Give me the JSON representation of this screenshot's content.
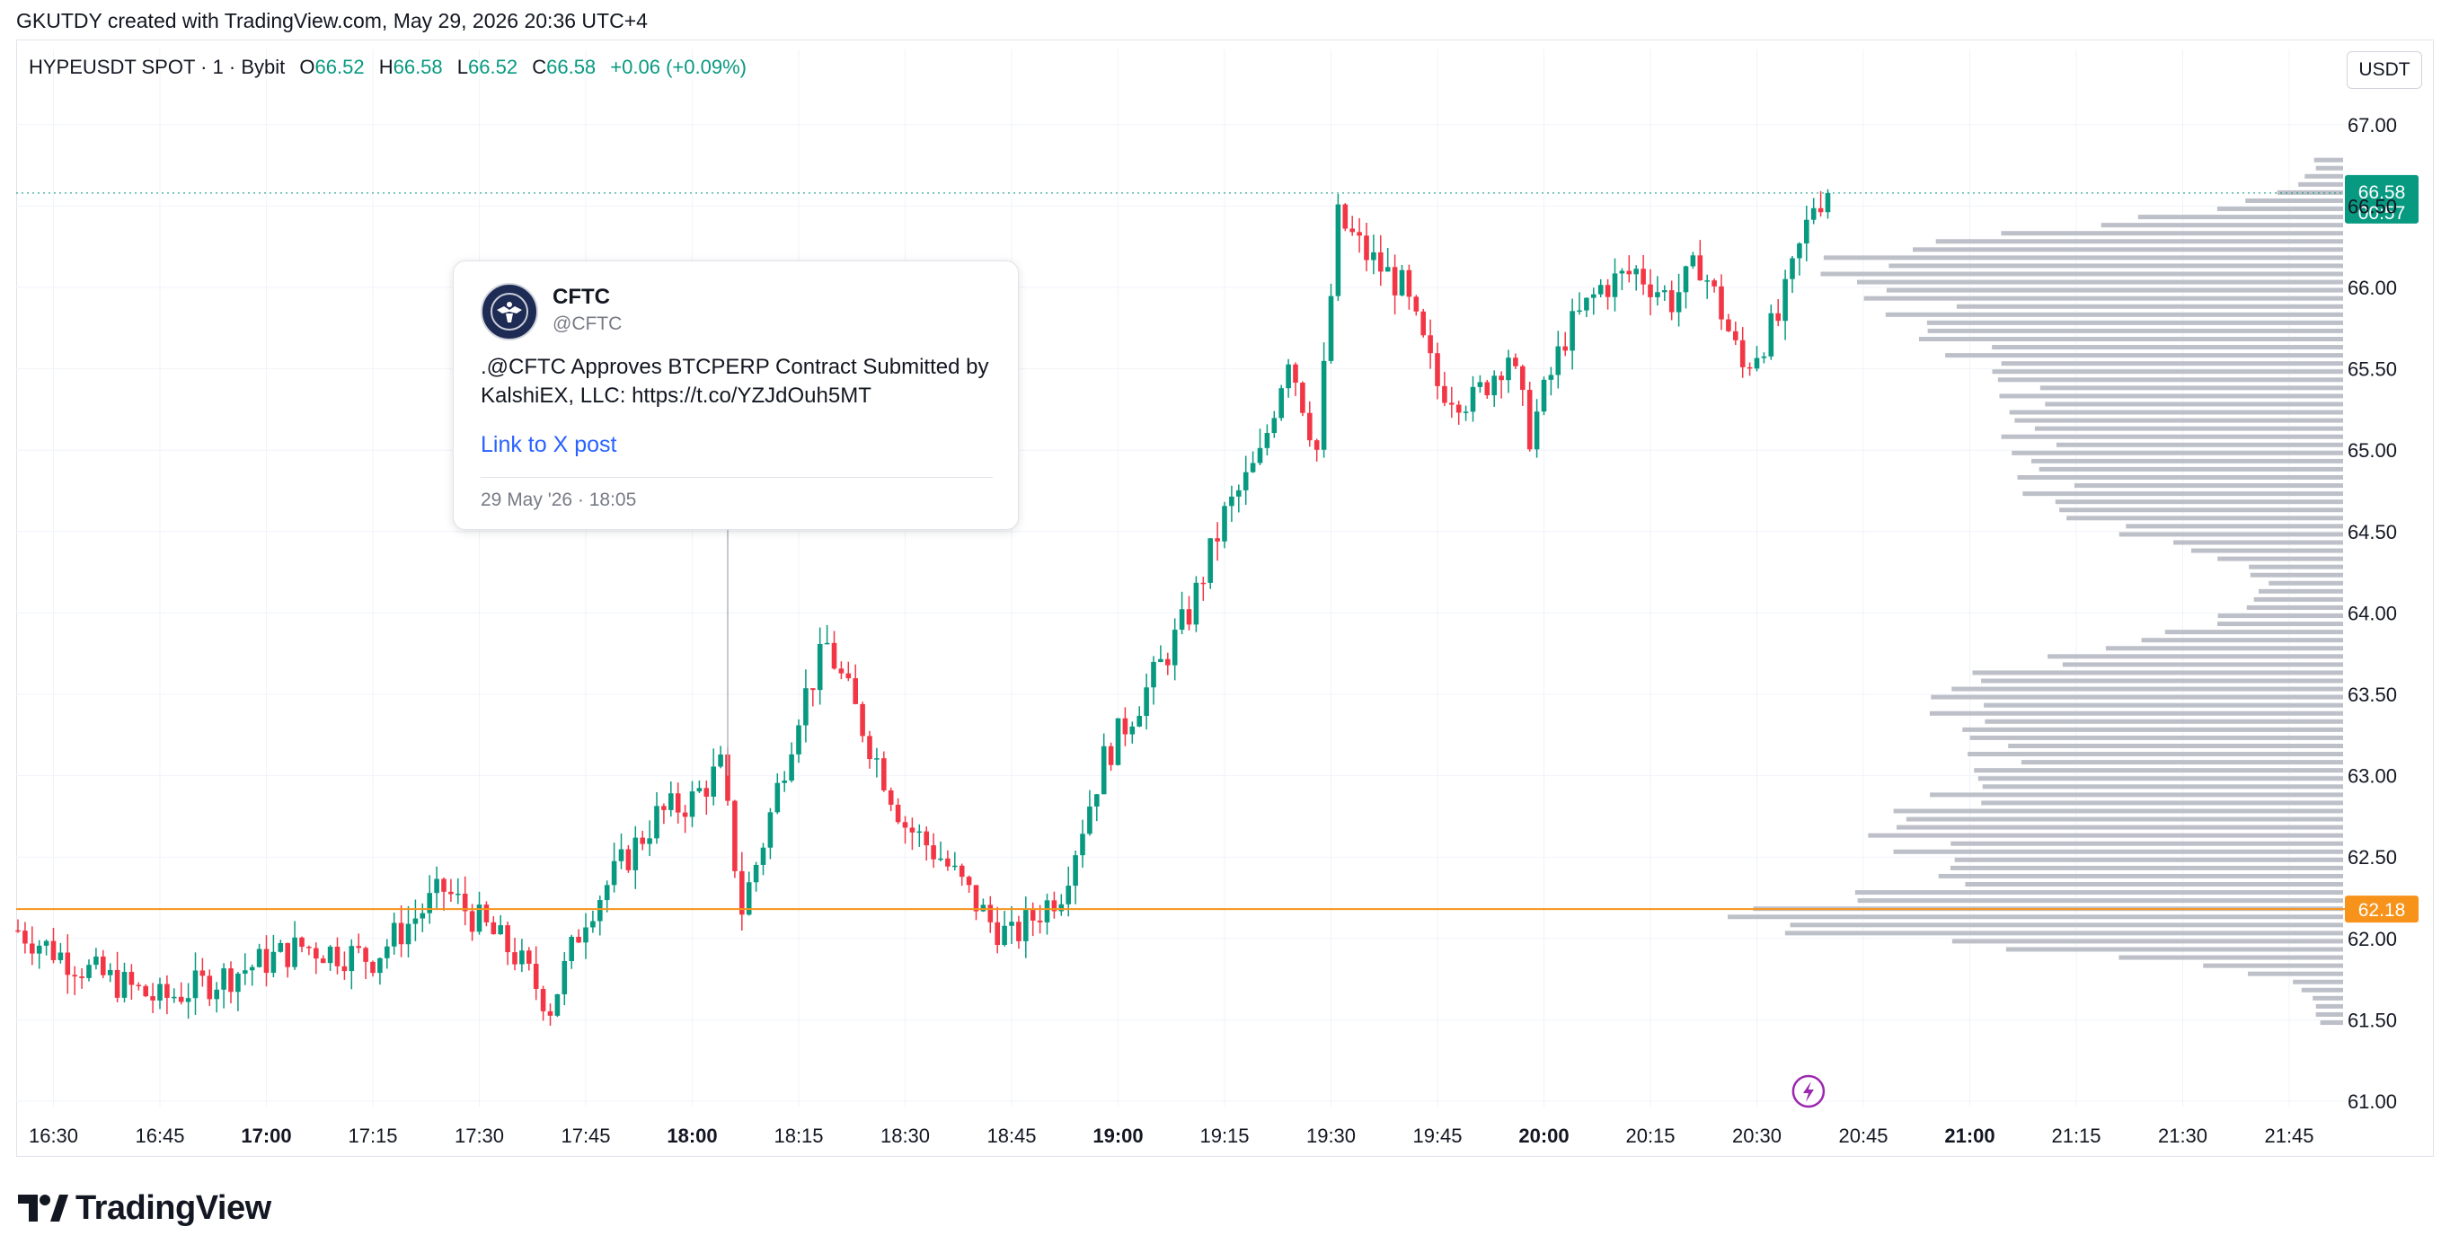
{
  "header": {
    "text": "GKUTDY created with TradingView.com, May 29, 2026 20:36 UTC+4"
  },
  "legend": {
    "symbol": "HYPEUSDT SPOT · 1 · Bybit",
    "o_label": "O",
    "o_value": "66.52",
    "h_label": "H",
    "h_value": "66.58",
    "l_label": "L",
    "l_value": "66.52",
    "c_label": "C",
    "c_value": "66.58",
    "change": "+0.06 (+0.09%)"
  },
  "currency": "USDT",
  "colors": {
    "up": "#089981",
    "down": "#f23645",
    "orange": "#f7931a",
    "volume_profile": "#b2b5be",
    "link": "#2962ff"
  },
  "tweet": {
    "author": "CFTC",
    "handle": "@CFTC",
    "text": ".@CFTC Approves BTCPERP Contract Submitted by KalshiEX, LLC: https://t.co/YZJdOuh5MT",
    "link_label": "Link to X post",
    "date": "29 May '26 · 18:05",
    "avatar_icon": "cftc-seal-icon"
  },
  "event_marker_icon": "lightning-icon",
  "footer": {
    "logo_text": "TradingView",
    "logo_icon": "tradingview-logo-icon"
  },
  "chart_data": {
    "type": "candlestick",
    "symbol": "HYPEUSDT",
    "timeframe": "1 minute",
    "x_tick_labels": [
      "16:30",
      "16:45",
      "17:00",
      "17:15",
      "17:30",
      "17:45",
      "18:00",
      "18:15",
      "18:30",
      "18:45",
      "19:00",
      "19:15",
      "19:30",
      "19:45",
      "20:00",
      "20:15",
      "20:30",
      "20:45",
      "21:00",
      "21:15",
      "21:30",
      "21:45"
    ],
    "bold_x_ticks": [
      "17:00",
      "18:00",
      "19:00",
      "20:00",
      "21:00"
    ],
    "y_tick_labels": [
      "67.00",
      "66.50",
      "66.00",
      "65.50",
      "65.00",
      "64.50",
      "64.00",
      "63.50",
      "63.00",
      "62.50",
      "62.00",
      "61.50",
      "61.00"
    ],
    "y_range": [
      60.9,
      67.3
    ],
    "x_range_minutes_from_1625": [
      0,
      330
    ],
    "current_price": "66.58",
    "countdown": "00:57",
    "horizontal_line": "62.18",
    "event_time": "18:05",
    "marker_time": "20:36",
    "anchor_prices": [
      [
        "16:25",
        62.05
      ],
      [
        "16:35",
        61.8
      ],
      [
        "16:45",
        61.62
      ],
      [
        "16:55",
        61.78
      ],
      [
        "17:05",
        61.95
      ],
      [
        "17:15",
        61.88
      ],
      [
        "17:25",
        62.3
      ],
      [
        "17:35",
        61.9
      ],
      [
        "17:40",
        61.58
      ],
      [
        "17:45",
        62.15
      ],
      [
        "17:55",
        62.75
      ],
      [
        "18:00",
        62.85
      ],
      [
        "18:04",
        63.05
      ],
      [
        "18:07",
        62.18
      ],
      [
        "18:10",
        62.6
      ],
      [
        "18:15",
        63.4
      ],
      [
        "18:19",
        63.8
      ],
      [
        "18:25",
        63.2
      ],
      [
        "18:30",
        62.7
      ],
      [
        "18:35",
        62.5
      ],
      [
        "18:42",
        62.1
      ],
      [
        "18:45",
        62.0
      ],
      [
        "18:52",
        62.3
      ],
      [
        "18:58",
        63.1
      ],
      [
        "19:05",
        63.6
      ],
      [
        "19:10",
        64.0
      ],
      [
        "19:15",
        64.6
      ],
      [
        "19:20",
        64.95
      ],
      [
        "19:24",
        65.6
      ],
      [
        "19:28",
        65.0
      ],
      [
        "19:31",
        66.42
      ],
      [
        "19:35",
        66.2
      ],
      [
        "19:40",
        66.0
      ],
      [
        "19:45",
        65.4
      ],
      [
        "19:50",
        65.3
      ],
      [
        "19:55",
        65.6
      ],
      [
        "19:58",
        65.1
      ],
      [
        "20:03",
        65.7
      ],
      [
        "20:08",
        66.0
      ],
      [
        "20:13",
        66.1
      ],
      [
        "20:18",
        65.92
      ],
      [
        "20:22",
        66.15
      ],
      [
        "20:25",
        65.85
      ],
      [
        "20:28",
        65.5
      ],
      [
        "20:33",
        65.8
      ],
      [
        "20:38",
        66.52
      ],
      [
        "20:40",
        66.58
      ]
    ],
    "volume_profile_note": "horizontal volume-by-price histogram drawn on the right side, peak near 62.18"
  }
}
